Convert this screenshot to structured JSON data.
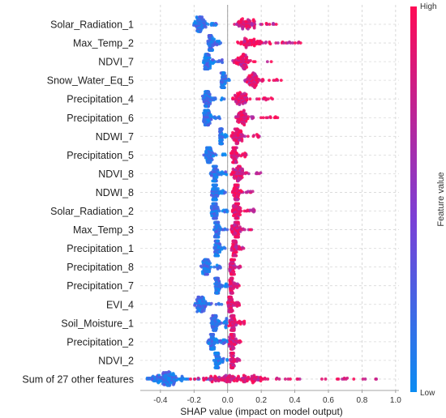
{
  "chart_data": {
    "type": "scatter",
    "subtype": "shap-beeswarm",
    "title": "",
    "xlabel": "SHAP value (impact on model output)",
    "xlim": [
      -0.52,
      1.02
    ],
    "xticks": [
      "-0.4",
      "-0.2",
      "0.0",
      "0.2",
      "0.4",
      "0.6",
      "0.8",
      "1.0"
    ],
    "xtick_values": [
      -0.4,
      -0.2,
      0.0,
      0.2,
      0.4,
      0.6,
      0.8,
      1.0
    ],
    "grid": true,
    "colorbar": {
      "title": "Feature value",
      "high_label": "High",
      "low_label": "Low",
      "low_color": "#0b8cf2",
      "mid_color": "#7b3fd6",
      "high_color": "#ff0a55"
    },
    "features": [
      {
        "name": "Solar_Radiation_1",
        "low_range": [
          -0.2,
          -0.05
        ],
        "high_range": [
          0.05,
          0.32
        ]
      },
      {
        "name": "Max_Temp_2",
        "low_range": [
          -0.12,
          -0.04
        ],
        "high_range": [
          0.05,
          0.45
        ]
      },
      {
        "name": "NDVI_7",
        "low_range": [
          -0.15,
          -0.02
        ],
        "high_range": [
          0.03,
          0.27
        ]
      },
      {
        "name": "Snow_Water_Eq_5",
        "low_range": [
          -0.04,
          0.02
        ],
        "high_range": [
          0.1,
          0.32
        ]
      },
      {
        "name": "Precipitation_4",
        "low_range": [
          -0.15,
          -0.02
        ],
        "high_range": [
          0.02,
          0.27
        ]
      },
      {
        "name": "Precipitation_6",
        "low_range": [
          -0.15,
          -0.02
        ],
        "high_range": [
          0.02,
          0.3
        ]
      },
      {
        "name": "NDWI_7",
        "low_range": [
          -0.05,
          0.0
        ],
        "high_range": [
          0.02,
          0.22
        ]
      },
      {
        "name": "Precipitation_5",
        "low_range": [
          -0.14,
          -0.01
        ],
        "high_range": [
          0.02,
          0.12
        ]
      },
      {
        "name": "NDVI_8",
        "low_range": [
          -0.1,
          0.0
        ],
        "high_range": [
          0.02,
          0.2
        ]
      },
      {
        "name": "NDWI_8",
        "low_range": [
          -0.1,
          0.0
        ],
        "high_range": [
          0.02,
          0.15
        ]
      },
      {
        "name": "Solar_Radiation_2",
        "low_range": [
          -0.1,
          0.0
        ],
        "high_range": [
          0.02,
          0.16
        ]
      },
      {
        "name": "Max_Temp_3",
        "low_range": [
          -0.08,
          0.0
        ],
        "high_range": [
          0.02,
          0.16
        ]
      },
      {
        "name": "Precipitation_1",
        "low_range": [
          -0.08,
          0.0
        ],
        "high_range": [
          0.02,
          0.1
        ]
      },
      {
        "name": "Precipitation_8",
        "low_range": [
          -0.16,
          -0.01
        ],
        "high_range": [
          0.01,
          0.08
        ]
      },
      {
        "name": "Precipitation_7",
        "low_range": [
          -0.08,
          0.0
        ],
        "high_range": [
          0.01,
          0.07
        ]
      },
      {
        "name": "EVI_4",
        "low_range": [
          -0.2,
          -0.02
        ],
        "high_range": [
          0.0,
          0.07
        ]
      },
      {
        "name": "Soil_Moisture_1",
        "low_range": [
          -0.1,
          0.0
        ],
        "high_range": [
          0.01,
          0.1
        ]
      },
      {
        "name": "Precipitation_2",
        "low_range": [
          -0.12,
          0.0
        ],
        "high_range": [
          0.01,
          0.08
        ]
      },
      {
        "name": "NDVI_2",
        "low_range": [
          -0.08,
          0.0
        ],
        "high_range": [
          0.01,
          0.08
        ]
      },
      {
        "name": "Sum of 27 other features",
        "low_range": [
          -0.48,
          0.05
        ],
        "high_range": [
          -0.2,
          0.95
        ]
      }
    ]
  }
}
